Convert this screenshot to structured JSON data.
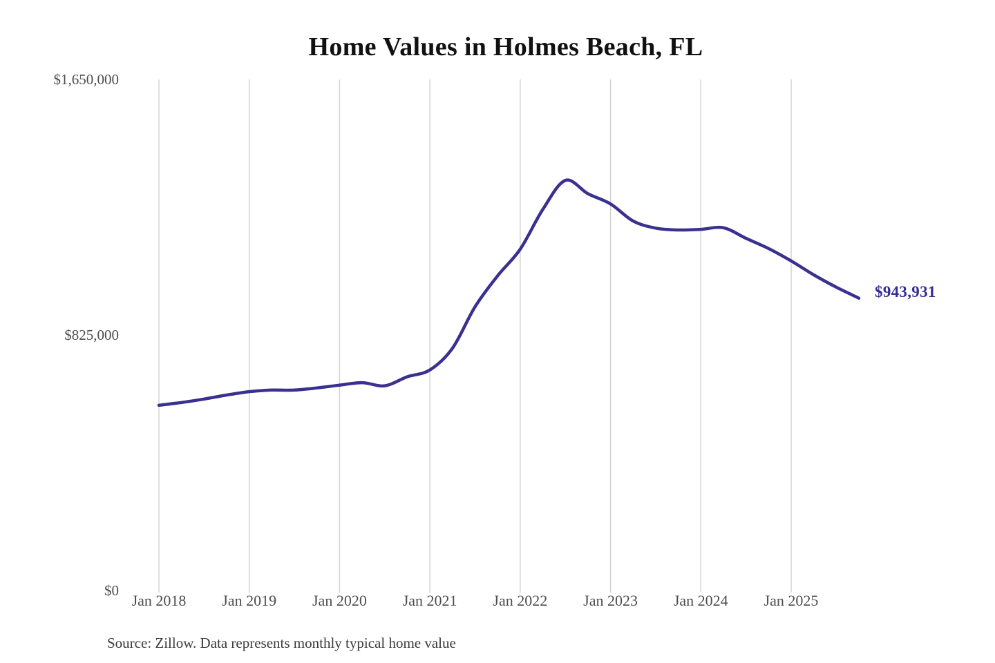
{
  "title": "Home Values in Holmes Beach, FL",
  "source": "Source: Zillow. Data represents monthly typical home value",
  "annotation": {
    "label": "$943,931"
  },
  "colors": {
    "line": "#39308F",
    "annotation": "#332D94",
    "grid": "#D0D0D0",
    "axis_text": "#4D4D4D",
    "title_text": "#111111",
    "source_text": "#3B3B3B"
  },
  "chart_data": {
    "type": "line",
    "title": "Home Values in Holmes Beach, FL",
    "xlabel": "",
    "ylabel": "",
    "ylim": [
      0,
      1650000
    ],
    "grid": "vertical-only",
    "legend": "none",
    "x_tick_labels": [
      "Jan 2018",
      "Jan 2019",
      "Jan 2020",
      "Jan 2021",
      "Jan 2022",
      "Jan 2023",
      "Jan 2024",
      "Jan 2025"
    ],
    "y_ticks": [
      {
        "label": "$0",
        "value": 0
      },
      {
        "label": "$825,000",
        "value": 825000
      },
      {
        "label": "$1,650,000",
        "value": 1650000
      }
    ],
    "series": [
      {
        "name": "Monthly typical home value",
        "points": [
          [
            "2018-01",
            598000
          ],
          [
            "2018-04",
            607000
          ],
          [
            "2018-07",
            618000
          ],
          [
            "2018-10",
            631000
          ],
          [
            "2019-01",
            642000
          ],
          [
            "2019-04",
            647000
          ],
          [
            "2019-07",
            647000
          ],
          [
            "2019-10",
            654000
          ],
          [
            "2020-01",
            663000
          ],
          [
            "2020-04",
            671000
          ],
          [
            "2020-07",
            661000
          ],
          [
            "2020-10",
            690000
          ],
          [
            "2021-01",
            712000
          ],
          [
            "2021-04",
            782000
          ],
          [
            "2021-07",
            916000
          ],
          [
            "2021-10",
            1016000
          ],
          [
            "2022-01",
            1102000
          ],
          [
            "2022-04",
            1230000
          ],
          [
            "2022-07",
            1324000
          ],
          [
            "2022-10",
            1281000
          ],
          [
            "2023-01",
            1248000
          ],
          [
            "2023-04",
            1193000
          ],
          [
            "2023-07",
            1170000
          ],
          [
            "2023-10",
            1164000
          ],
          [
            "2024-01",
            1166000
          ],
          [
            "2024-04",
            1171000
          ],
          [
            "2024-07",
            1137000
          ],
          [
            "2024-10",
            1104000
          ],
          [
            "2025-01",
            1064000
          ],
          [
            "2025-04",
            1019000
          ],
          [
            "2025-07",
            979000
          ],
          [
            "2025-10",
            943931
          ]
        ]
      }
    ],
    "latest": {
      "date": "2025-10",
      "value": 943931,
      "label": "$943,931"
    }
  }
}
